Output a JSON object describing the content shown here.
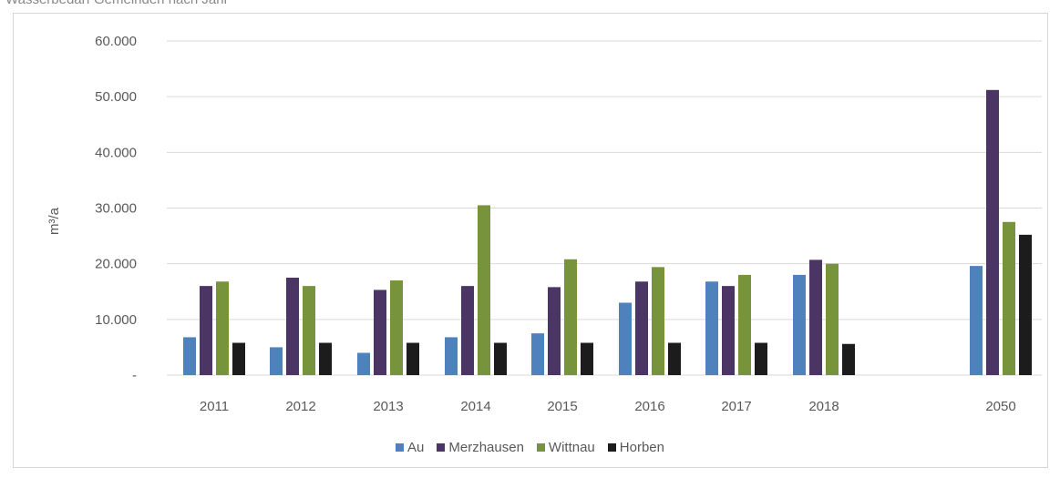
{
  "top_caption": "Wasserbedarf Gemeinden nach Jahr",
  "chart_data": {
    "type": "bar",
    "title": "",
    "xlabel": "",
    "ylabel": "m³/a",
    "categories": [
      "2011",
      "2012",
      "2013",
      "2014",
      "2015",
      "2016",
      "2017",
      "2018",
      "2050"
    ],
    "ylim": [
      0,
      60000
    ],
    "yticks": [
      0,
      10000,
      20000,
      30000,
      40000,
      50000,
      60000
    ],
    "ytick_labels": [
      "-",
      "10.000",
      "20.000",
      "30.000",
      "40.000",
      "50.000",
      "60.000"
    ],
    "grid": true,
    "legend_position": "bottom",
    "series": [
      {
        "name": "Au",
        "color": "#4f81bd",
        "values": [
          6800,
          5000,
          4000,
          6800,
          7500,
          13000,
          16800,
          18000,
          19600
        ]
      },
      {
        "name": "Merzhausen",
        "color": "#4b3564",
        "values": [
          16000,
          17500,
          15300,
          16000,
          15800,
          16800,
          16000,
          20700,
          51200
        ]
      },
      {
        "name": "Wittnau",
        "color": "#77933c",
        "values": [
          16800,
          16000,
          17000,
          30500,
          20800,
          19400,
          18000,
          20000,
          27500
        ]
      },
      {
        "name": "Horben",
        "color": "#1c1c1c",
        "values": [
          5800,
          5800,
          5800,
          5800,
          5800,
          5800,
          5800,
          5600,
          25200
        ]
      }
    ]
  }
}
